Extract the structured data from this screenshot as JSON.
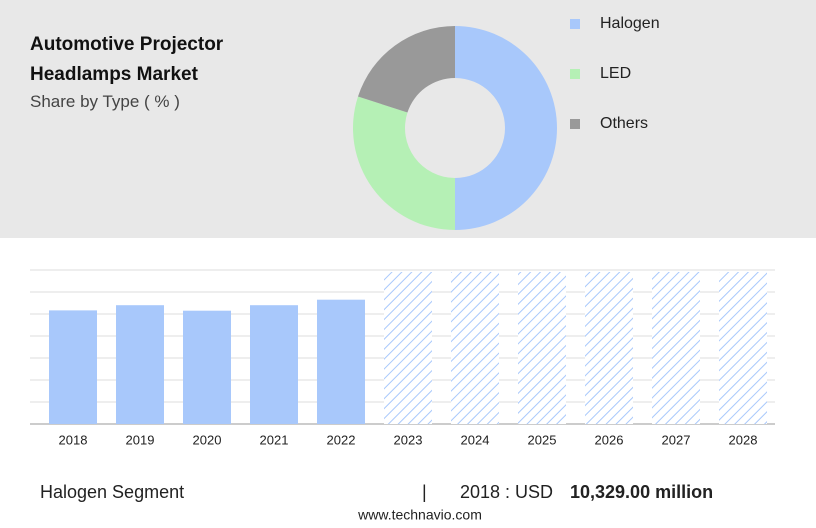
{
  "chart_data": [
    {
      "type": "donut",
      "title": "Automotive Projector Headlamps Market",
      "subtitle": "Share by Type ( % )",
      "categories": [
        "Halogen",
        "LED",
        "Others"
      ],
      "values": [
        50,
        30,
        20
      ],
      "colors": [
        "#a8c8fb",
        "#b5f0b5",
        "#999999"
      ]
    },
    {
      "type": "bar",
      "categories": [
        "2018",
        "2019",
        "2020",
        "2021",
        "2022",
        "2023",
        "2024",
        "2025",
        "2026",
        "2027",
        "2028"
      ],
      "values": [
        10329,
        10800,
        10300,
        10800,
        11300,
        null,
        null,
        null,
        null,
        null,
        null
      ],
      "color": "#a8c8fb",
      "ylim": [
        0,
        14000
      ],
      "yticks": [
        0,
        2000,
        4000,
        6000,
        8000,
        10000,
        12000,
        14000
      ],
      "grid": true
    }
  ],
  "footer": {
    "segment": "Halogen Segment",
    "separator": "|",
    "year_label": "2018 : USD",
    "value_label": "10,329.00 million",
    "source": "www.technavio.com"
  }
}
